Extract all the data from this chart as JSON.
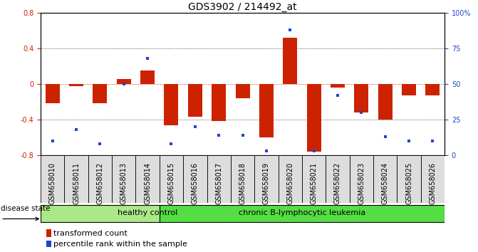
{
  "title": "GDS3902 / 214492_at",
  "samples": [
    "GSM658010",
    "GSM658011",
    "GSM658012",
    "GSM658013",
    "GSM658014",
    "GSM658015",
    "GSM658016",
    "GSM658017",
    "GSM658018",
    "GSM658019",
    "GSM658020",
    "GSM658021",
    "GSM658022",
    "GSM658023",
    "GSM658024",
    "GSM658025",
    "GSM658026"
  ],
  "transformed_count": [
    -0.22,
    -0.03,
    -0.22,
    0.05,
    0.15,
    -0.47,
    -0.37,
    -0.42,
    -0.16,
    -0.6,
    0.52,
    -0.76,
    -0.04,
    -0.32,
    -0.4,
    -0.13,
    -0.13
  ],
  "percentile_rank": [
    10,
    18,
    8,
    50,
    68,
    8,
    20,
    14,
    14,
    3,
    88,
    3,
    42,
    30,
    13,
    10,
    10
  ],
  "bar_color": "#cc2200",
  "dot_color": "#2244cc",
  "ylim_left": [
    -0.8,
    0.8
  ],
  "ylim_right": [
    0,
    100
  ],
  "yticks_left": [
    -0.8,
    -0.4,
    0.0,
    0.4,
    0.8
  ],
  "yticks_right": [
    0,
    25,
    50,
    75,
    100
  ],
  "ytick_labels_right": [
    "0",
    "25",
    "50",
    "75",
    "100%"
  ],
  "group1_count": 5,
  "group1_label": "healthy control",
  "group2_label": "chronic B-lymphocytic leukemia",
  "group1_color": "#aae888",
  "group2_color": "#55dd44",
  "disease_state_label": "disease state",
  "legend_bar_label": "transformed count",
  "legend_dot_label": "percentile rank within the sample",
  "zero_line_color": "#cc2200",
  "background_color": "#ffffff",
  "title_fontsize": 10,
  "tick_label_fontsize": 7,
  "bar_width": 0.6,
  "cell_bg": "#dddddd"
}
